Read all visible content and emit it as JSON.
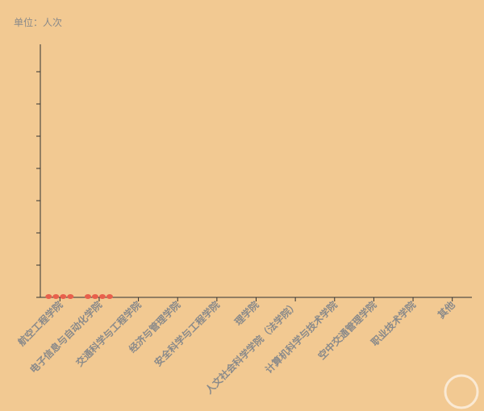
{
  "chart_data": {
    "type": "bar",
    "unit_label": "单位：人次",
    "categories": [
      "航空工程学院",
      "电子信息与自动化学院",
      "交通科学与工程学院",
      "经济与管理学院",
      "安全科学与工程学院",
      "理学院",
      "人文社会科学学院（法学院）",
      "计算机科学与技术学院",
      "空中交通管理学院",
      "职业技术学院",
      "其他"
    ],
    "series": [
      {
        "color": "#e8604c",
        "values": [
          0.1,
          0.1,
          0,
          0,
          0,
          0,
          0,
          0,
          0,
          0,
          0
        ]
      },
      {
        "color": "#e8604c",
        "values": [
          0.1,
          0.1,
          0,
          0,
          0,
          0,
          0,
          0,
          0,
          0,
          0
        ]
      },
      {
        "color": "#e8604c",
        "values": [
          0.1,
          0.1,
          0,
          0,
          0,
          0,
          0,
          0,
          0,
          0,
          0
        ]
      },
      {
        "color": "#e8604c",
        "values": [
          0.1,
          0.1,
          0,
          0,
          0,
          0,
          0,
          0,
          0,
          0,
          0
        ]
      }
    ],
    "ylim": [
      0,
      8
    ],
    "yticks": [
      0,
      1,
      2,
      3,
      4,
      5,
      6,
      7
    ]
  }
}
